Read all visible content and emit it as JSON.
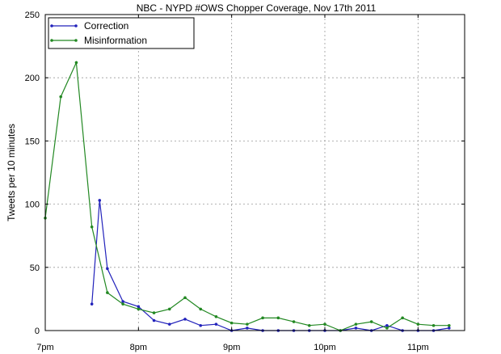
{
  "chart_data": {
    "type": "line",
    "title": "NBC - NYPD #OWS Chopper Coverage, Nov 17th 2011",
    "xlabel": "",
    "ylabel": "Tweets per 10 minutes",
    "ylim": [
      0,
      250
    ],
    "yticks": [
      0,
      50,
      100,
      150,
      200,
      250
    ],
    "xlim": [
      "19:00",
      "23:30"
    ],
    "xticks": [
      {
        "x": "19:00",
        "label": "7pm"
      },
      {
        "x": "20:00",
        "label": "8pm"
      },
      {
        "x": "21:00",
        "label": "9pm"
      },
      {
        "x": "22:00",
        "label": "10pm"
      },
      {
        "x": "23:00",
        "label": "11pm"
      }
    ],
    "grid": true,
    "legend_position": "top-left",
    "series": [
      {
        "name": "Correction",
        "color": "#2222bb",
        "points": [
          {
            "x": "19:30",
            "y": 21
          },
          {
            "x": "19:35",
            "y": 103
          },
          {
            "x": "19:40",
            "y": 49
          },
          {
            "x": "19:50",
            "y": 23
          },
          {
            "x": "20:00",
            "y": 19
          },
          {
            "x": "20:10",
            "y": 8
          },
          {
            "x": "20:20",
            "y": 5
          },
          {
            "x": "20:30",
            "y": 9
          },
          {
            "x": "20:40",
            "y": 4
          },
          {
            "x": "20:50",
            "y": 5
          },
          {
            "x": "21:00",
            "y": 0
          },
          {
            "x": "21:10",
            "y": 2
          },
          {
            "x": "21:20",
            "y": 0
          },
          {
            "x": "21:30",
            "y": 0
          },
          {
            "x": "21:40",
            "y": 0
          },
          {
            "x": "21:50",
            "y": 0
          },
          {
            "x": "22:00",
            "y": 0
          },
          {
            "x": "22:10",
            "y": 0
          },
          {
            "x": "22:20",
            "y": 2
          },
          {
            "x": "22:30",
            "y": 0
          },
          {
            "x": "22:40",
            "y": 4
          },
          {
            "x": "22:50",
            "y": 0
          },
          {
            "x": "23:00",
            "y": 0
          },
          {
            "x": "23:10",
            "y": 0
          },
          {
            "x": "23:20",
            "y": 2
          }
        ]
      },
      {
        "name": "Misinformation",
        "color": "#228822",
        "points": [
          {
            "x": "19:00",
            "y": 89
          },
          {
            "x": "19:10",
            "y": 185
          },
          {
            "x": "19:20",
            "y": 212
          },
          {
            "x": "19:30",
            "y": 82
          },
          {
            "x": "19:40",
            "y": 30
          },
          {
            "x": "19:50",
            "y": 21
          },
          {
            "x": "20:00",
            "y": 17
          },
          {
            "x": "20:10",
            "y": 14
          },
          {
            "x": "20:20",
            "y": 17
          },
          {
            "x": "20:30",
            "y": 26
          },
          {
            "x": "20:40",
            "y": 17
          },
          {
            "x": "20:50",
            "y": 11
          },
          {
            "x": "21:00",
            "y": 6
          },
          {
            "x": "21:10",
            "y": 5
          },
          {
            "x": "21:20",
            "y": 10
          },
          {
            "x": "21:30",
            "y": 10
          },
          {
            "x": "21:40",
            "y": 7
          },
          {
            "x": "21:50",
            "y": 4
          },
          {
            "x": "22:00",
            "y": 5
          },
          {
            "x": "22:10",
            "y": 0
          },
          {
            "x": "22:20",
            "y": 5
          },
          {
            "x": "22:30",
            "y": 7
          },
          {
            "x": "22:40",
            "y": 2
          },
          {
            "x": "22:50",
            "y": 10
          },
          {
            "x": "23:00",
            "y": 5
          },
          {
            "x": "23:10",
            "y": 4
          },
          {
            "x": "23:20",
            "y": 4
          }
        ]
      }
    ]
  }
}
